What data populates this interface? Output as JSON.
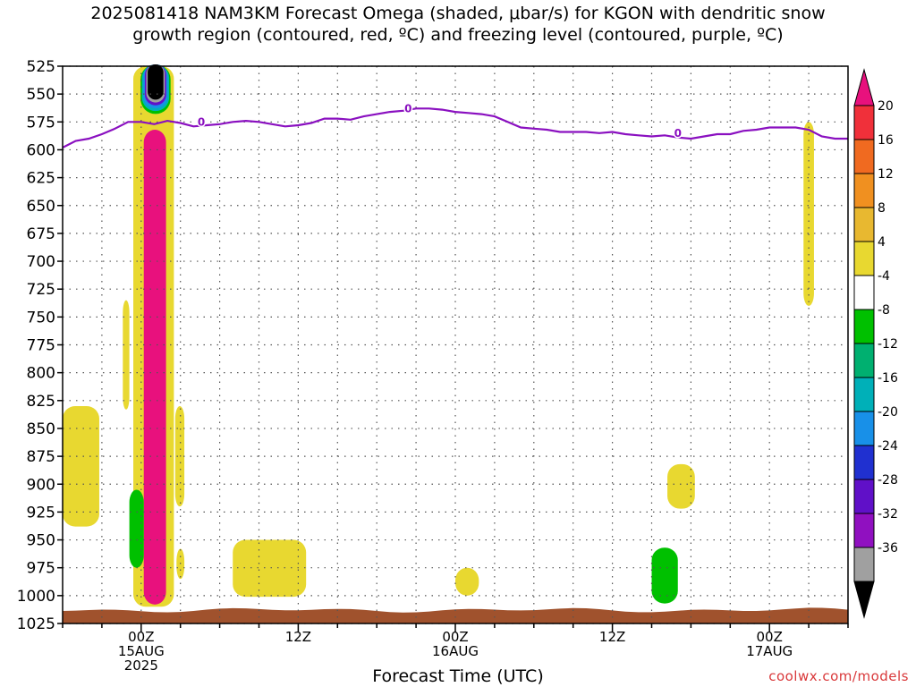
{
  "title_line1": "2025081418 NAM3KM Forecast Omega (shaded, μbar/s) for KGON with dendritic snow",
  "title_line2": "growth region (contoured, red, ºC) and freezing level (contoured, purple, ºC)",
  "x_axis_title": "Forecast Time (UTC)",
  "credit": "coolwx.com/models",
  "chart_data": {
    "type": "heatmap",
    "y_axis": {
      "label": "",
      "ticks": [
        "525",
        "550",
        "575",
        "600",
        "625",
        "650",
        "675",
        "700",
        "725",
        "750",
        "775",
        "800",
        "825",
        "850",
        "875",
        "900",
        "925",
        "950",
        "975",
        "1000",
        "1025"
      ],
      "range": [
        525,
        1025
      ],
      "inverted": true
    },
    "x_axis": {
      "range_hours": [
        -6,
        54
      ],
      "ticks": [
        {
          "hour": 0,
          "lines": [
            "00Z",
            "15AUG",
            "2025"
          ]
        },
        {
          "hour": 12,
          "lines": [
            "12Z"
          ]
        },
        {
          "hour": 24,
          "lines": [
            "00Z",
            "16AUG"
          ]
        },
        {
          "hour": 36,
          "lines": [
            "12Z"
          ]
        },
        {
          "hour": 48,
          "lines": [
            "00Z",
            "17AUG"
          ]
        }
      ]
    },
    "grid": true,
    "colorbar": {
      "labels": [
        "20",
        "16",
        "12",
        "8",
        "4",
        "-4",
        "-8",
        "-12",
        "-16",
        "-20",
        "-24",
        "-28",
        "-32",
        "-36"
      ],
      "colors": [
        "#e8117d",
        "#f0303a",
        "#f06a20",
        "#f09020",
        "#e8b830",
        "#e8d830",
        "#ffffff",
        "#00c000",
        "#00b070",
        "#00b0b8",
        "#1890e8",
        "#2030d0",
        "#6010c8",
        "#9010c0",
        "#a0a0a0",
        "#000000"
      ]
    },
    "freezing_level": {
      "label": "0",
      "color": "#8a10c0",
      "x_hours": [
        -6,
        -5,
        -4,
        -3,
        -2,
        -1,
        0,
        1,
        2,
        3,
        4,
        5,
        6,
        7,
        8,
        9,
        10,
        11,
        12,
        13,
        14,
        15,
        16,
        17,
        18,
        19,
        20,
        21,
        22,
        23,
        24,
        25,
        26,
        27,
        28,
        29,
        30,
        31,
        32,
        33,
        34,
        35,
        36,
        37,
        38,
        39,
        40,
        41,
        42,
        43,
        44,
        45,
        46,
        47,
        48,
        49,
        50,
        51,
        52,
        53,
        54
      ],
      "pressure_mb": [
        598,
        592,
        590,
        586,
        581,
        575,
        575,
        577,
        574,
        576,
        579,
        578,
        577,
        575,
        574,
        575,
        577,
        579,
        578,
        576,
        572,
        572,
        573,
        570,
        568,
        566,
        565,
        563,
        563,
        564,
        566,
        567,
        568,
        570,
        575,
        580,
        581,
        582,
        584,
        584,
        584,
        585,
        584,
        586,
        587,
        588,
        587,
        589,
        590,
        588,
        586,
        586,
        583,
        582,
        580,
        580,
        580,
        582,
        588,
        590,
        590
      ],
      "label_positions": [
        {
          "hour": 4.6,
          "pressure_mb": 575
        },
        {
          "hour": 20.4,
          "pressure_mb": 563
        },
        {
          "hour": 41.0,
          "pressure_mb": 585
        }
      ]
    },
    "shaded_regions": [
      {
        "value": 20,
        "desc": "strong column",
        "hour_range": [
          0.2,
          1.9
        ],
        "pressure_range": [
          582,
          1008
        ]
      },
      {
        "value": 6,
        "desc": "yellow band around column",
        "hour_range": [
          -0.6,
          2.5
        ],
        "pressure_range": [
          525,
          1010
        ]
      },
      {
        "value": -36,
        "desc": "black core aloft",
        "hour_range": [
          0.5,
          1.7
        ],
        "pressure_range": [
          525,
          555
        ]
      },
      {
        "value": -6,
        "desc": "green near column base",
        "hour_range": [
          -0.9,
          0.2
        ],
        "pressure_range": [
          905,
          975
        ]
      },
      {
        "value": 6,
        "desc": "left edge yellow patch",
        "hour_range": [
          -6,
          -3.2
        ],
        "pressure_range": [
          830,
          938
        ]
      },
      {
        "value": 6,
        "desc": "thin yellow at -1h",
        "hour_range": [
          -1.4,
          -0.9
        ],
        "pressure_range": [
          735,
          833
        ]
      },
      {
        "value": 6,
        "desc": "yellow patch right of column",
        "hour_range": [
          2.6,
          3.3
        ],
        "pressure_range": [
          830,
          920
        ]
      },
      {
        "value": 6,
        "desc": "small yellow at 3h",
        "hour_range": [
          2.7,
          3.3
        ],
        "pressure_range": [
          958,
          985
        ]
      },
      {
        "value": 6,
        "desc": "yellow patch 7-12Z",
        "hour_range": [
          7.0,
          12.6
        ],
        "pressure_range": [
          950,
          1001
        ]
      },
      {
        "value": 6,
        "desc": "small yellow near 16AUG",
        "hour_range": [
          24.0,
          25.8
        ],
        "pressure_range": [
          975,
          1000
        ]
      },
      {
        "value": -6,
        "desc": "green patch",
        "hour_range": [
          39.0,
          41.0
        ],
        "pressure_range": [
          957,
          1007
        ]
      },
      {
        "value": 6,
        "desc": "yellow 900mb patch",
        "hour_range": [
          40.2,
          42.3
        ],
        "pressure_range": [
          882,
          922
        ]
      },
      {
        "value": 6,
        "desc": "vertical yellow streak",
        "hour_range": [
          50.6,
          51.4
        ],
        "pressure_range": [
          575,
          740
        ]
      }
    ]
  }
}
